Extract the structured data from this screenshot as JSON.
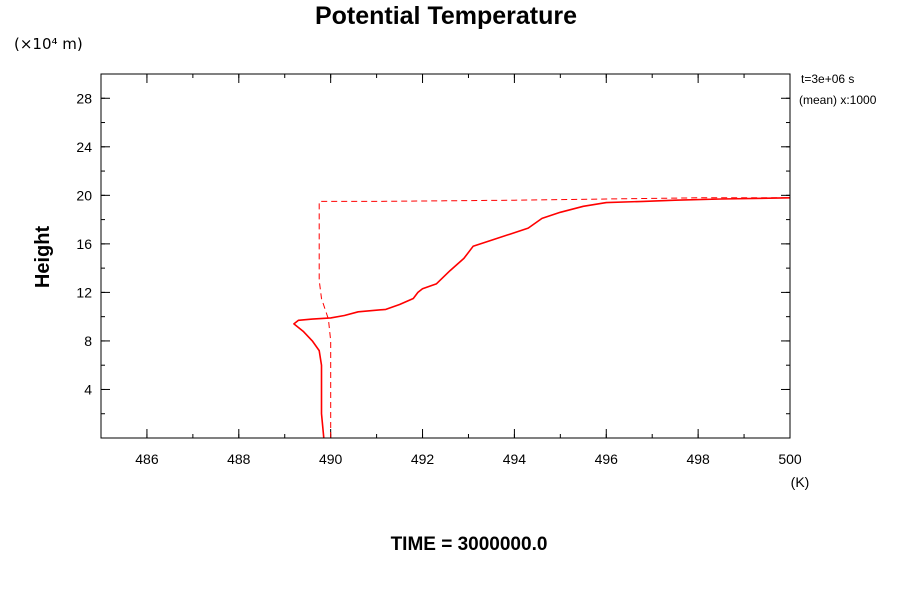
{
  "chart_data": {
    "type": "line",
    "title": "Potential Temperature",
    "ylabel": "Height",
    "y_unit": "(×10⁴ m)",
    "x_unit": "(K)",
    "xlim": [
      485,
      500
    ],
    "ylim": [
      0,
      30
    ],
    "x_ticks": [
      486,
      488,
      490,
      492,
      494,
      496,
      498,
      500
    ],
    "y_ticks": [
      4,
      8,
      12,
      16,
      20,
      24,
      28
    ],
    "x_tick_labels": [
      "486",
      "488",
      "490",
      "492",
      "494",
      "496",
      "498",
      "500"
    ],
    "y_tick_labels": [
      "4",
      "8",
      "12",
      "16",
      "20",
      "24",
      "28"
    ],
    "grid": false,
    "legend": false,
    "annotations": [
      "t=3e+06 s",
      "(mean) x:1000"
    ],
    "footer": "TIME = 3000000.0",
    "series": [
      {
        "style": "solid",
        "color": "#ff0000",
        "points": [
          [
            489.85,
            0.0
          ],
          [
            489.8,
            2.0
          ],
          [
            489.8,
            4.0
          ],
          [
            489.8,
            6.0
          ],
          [
            489.75,
            7.2
          ],
          [
            489.6,
            8.0
          ],
          [
            489.4,
            8.8
          ],
          [
            489.2,
            9.4
          ],
          [
            489.3,
            9.7
          ],
          [
            489.6,
            9.8
          ],
          [
            490.0,
            9.9
          ],
          [
            490.3,
            10.1
          ],
          [
            490.6,
            10.4
          ],
          [
            491.2,
            10.6
          ],
          [
            491.5,
            11.0
          ],
          [
            491.8,
            11.5
          ],
          [
            491.9,
            12.0
          ],
          [
            492.0,
            12.3
          ],
          [
            492.3,
            12.7
          ],
          [
            492.6,
            13.8
          ],
          [
            492.9,
            14.8
          ],
          [
            493.1,
            15.8
          ],
          [
            493.5,
            16.3
          ],
          [
            493.9,
            16.8
          ],
          [
            494.3,
            17.3
          ],
          [
            494.6,
            18.1
          ],
          [
            495.0,
            18.6
          ],
          [
            495.5,
            19.1
          ],
          [
            496.0,
            19.4
          ],
          [
            496.8,
            19.5
          ],
          [
            497.5,
            19.6
          ],
          [
            498.5,
            19.7
          ],
          [
            500.0,
            19.8
          ]
        ]
      },
      {
        "style": "dashed",
        "color": "#ff0000",
        "points": [
          [
            490.0,
            0.0
          ],
          [
            490.0,
            8.0
          ],
          [
            489.95,
            9.8
          ],
          [
            489.8,
            11.5
          ],
          [
            489.75,
            13.0
          ],
          [
            489.75,
            16.0
          ],
          [
            489.75,
            19.5
          ],
          [
            491.0,
            19.5
          ],
          [
            492.5,
            19.55
          ],
          [
            494.0,
            19.6
          ],
          [
            496.0,
            19.7
          ],
          [
            498.0,
            19.8
          ],
          [
            500.0,
            19.8
          ]
        ]
      }
    ]
  }
}
